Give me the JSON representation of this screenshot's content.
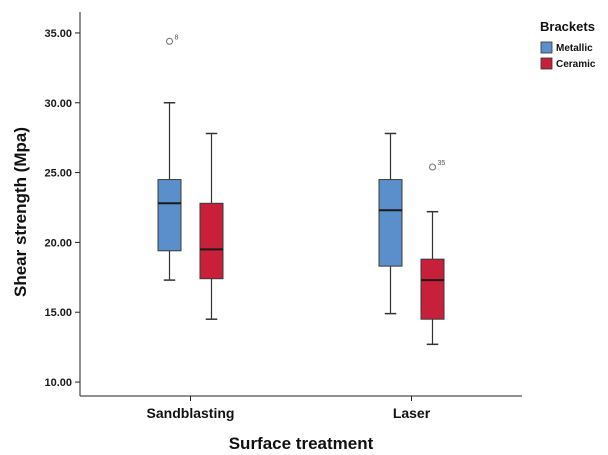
{
  "chart_data": {
    "type": "boxplot",
    "xlabel": "Surface treatment",
    "ylabel": "Shear strength (Mpa)",
    "ylim": [
      9,
      36.5
    ],
    "yticks": [
      10,
      15,
      20,
      25,
      30,
      35
    ],
    "ytick_labels": [
      "10.00",
      "15.00",
      "20.00",
      "25.00",
      "30.00",
      "35.00"
    ],
    "categories": [
      "Sandblasting",
      "Laser"
    ],
    "legend_title": "Brackets",
    "legend_position": "top-right",
    "grid": false,
    "series": [
      {
        "name": "Metallic",
        "color": "#5b8fcb",
        "boxes": [
          {
            "category": "Sandblasting",
            "min": 17.3,
            "q1": 19.4,
            "median": 22.8,
            "q3": 24.5,
            "max": 30.0,
            "outliers": [
              {
                "value": 34.4,
                "label": "8"
              }
            ]
          },
          {
            "category": "Laser",
            "min": 14.9,
            "q1": 18.3,
            "median": 22.3,
            "q3": 24.5,
            "max": 27.8,
            "outliers": []
          }
        ]
      },
      {
        "name": "Ceramic",
        "color": "#c8203a",
        "boxes": [
          {
            "category": "Sandblasting",
            "min": 14.5,
            "q1": 17.4,
            "median": 19.5,
            "q3": 22.8,
            "max": 27.8,
            "outliers": []
          },
          {
            "category": "Laser",
            "min": 12.7,
            "q1": 14.5,
            "median": 17.3,
            "q3": 18.8,
            "max": 22.2,
            "outliers": [
              {
                "value": 25.4,
                "label": "35"
              }
            ]
          }
        ]
      }
    ]
  }
}
